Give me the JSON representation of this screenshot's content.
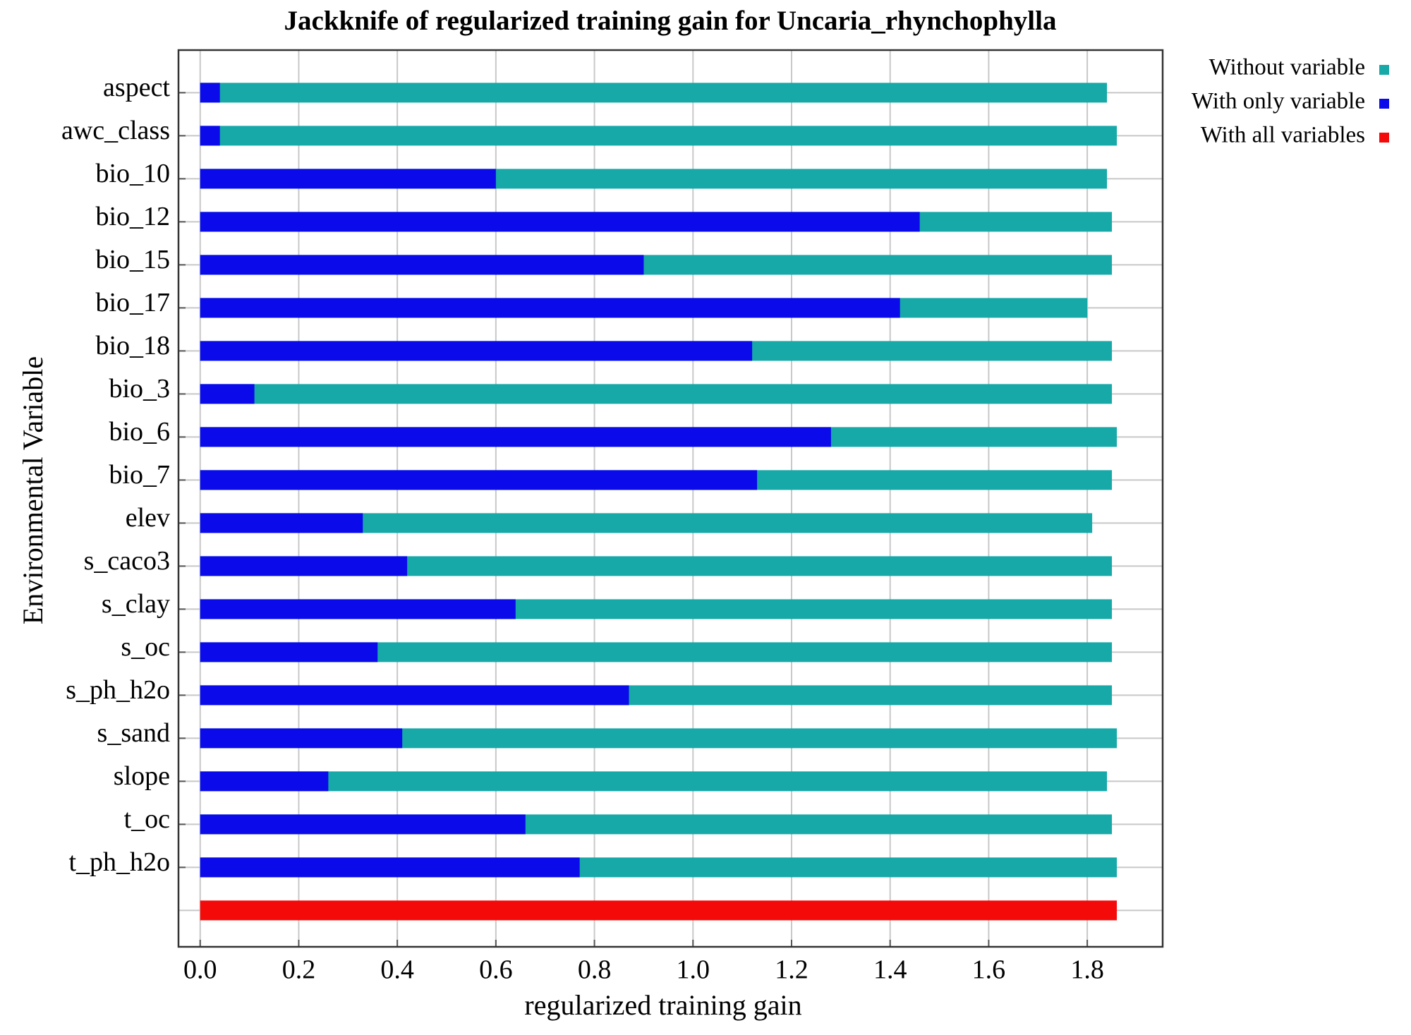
{
  "chart_data": {
    "type": "bar",
    "orientation": "horizontal",
    "title": "Jackknife of regularized training gain for Uncaria_rhynchophylla",
    "x_label": "regularized training gain",
    "y_label": "Environmental Variable",
    "categories": [
      "aspect",
      "awc_class",
      "bio_10",
      "bio_12",
      "bio_15",
      "bio_17",
      "bio_18",
      "bio_3",
      "bio_6",
      "bio_7",
      "elev",
      "s_caco3",
      "s_clay",
      "s_oc",
      "s_ph_h2o",
      "s_sand",
      "slope",
      "t_oc",
      "t_ph_h2o",
      null
    ],
    "series": [
      {
        "name": "Without variable",
        "color": "#17a8a8",
        "values": [
          1.84,
          1.86,
          1.84,
          1.85,
          1.85,
          1.8,
          1.85,
          1.85,
          1.86,
          1.85,
          1.81,
          1.85,
          1.85,
          1.85,
          1.85,
          1.86,
          1.84,
          1.85,
          1.86,
          null
        ]
      },
      {
        "name": "With only variable",
        "color": "#0a0aea",
        "values": [
          0.04,
          0.04,
          0.6,
          1.46,
          0.9,
          1.42,
          1.12,
          0.11,
          1.28,
          1.13,
          0.33,
          0.42,
          0.64,
          0.36,
          0.87,
          0.41,
          0.26,
          0.66,
          0.77,
          null
        ]
      },
      {
        "name": "With all variables",
        "color": "#f50a0a",
        "values": [
          null,
          null,
          null,
          null,
          null,
          null,
          null,
          null,
          null,
          null,
          null,
          null,
          null,
          null,
          null,
          null,
          null,
          null,
          null,
          1.86
        ]
      }
    ],
    "xlim": [
      -0.044,
      1.953
    ],
    "xticks": [
      {
        "value": 0,
        "label": "0.0"
      },
      0.2,
      0.4,
      0.6,
      0.8,
      {
        "value": 1,
        "label": "1.0"
      },
      1.2,
      1.4,
      1.6,
      1.8
    ],
    "grid": true,
    "legend": "right"
  }
}
